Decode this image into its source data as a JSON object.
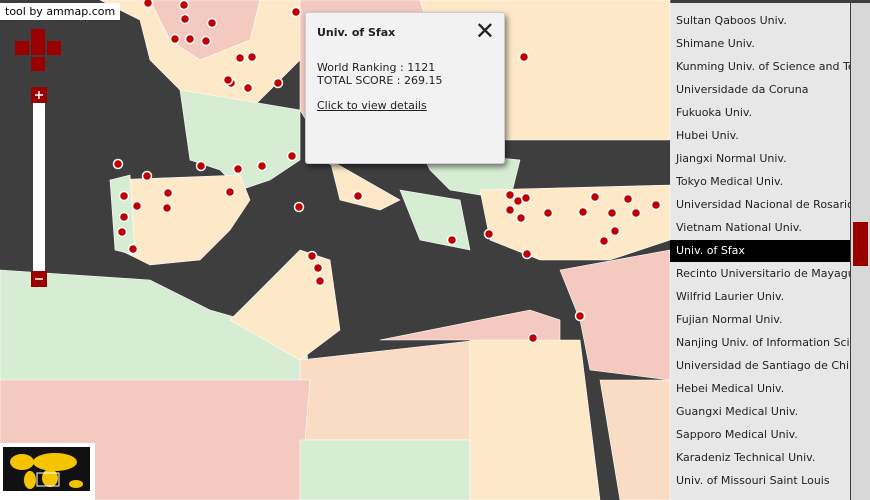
{
  "credit": "tool by ammap.com",
  "popup": {
    "title": "Univ. of Sfax",
    "lines": [
      "World Ranking : 1121",
      "TOTAL SCORE : 269.15"
    ],
    "link": "Click to view details"
  },
  "list": {
    "items": [
      "Sultan Qaboos Univ.",
      "Shimane Univ.",
      "Kunming Univ. of Science and Technology",
      "Universidade da Coruna",
      "Fukuoka Univ.",
      "Hubei Univ.",
      "Jiangxi Normal Univ.",
      "Tokyo Medical Univ.",
      "Universidad Nacional de Rosario",
      "Vietnam National Univ.",
      "Univ. of Sfax",
      "Recinto Universitario de Mayaguez",
      "Wilfrid Laurier Univ.",
      "Fujian Normal Univ.",
      "Nanjing Univ. of Information Science",
      "Universidad de Santiago de Chile",
      "Hebei Medical Univ.",
      "Guangxi Medical Univ.",
      "Sapporo Medical Univ.",
      "Karadeniz Technical Univ.",
      "Univ. of Missouri Saint Louis"
    ],
    "selected": 10
  }
}
